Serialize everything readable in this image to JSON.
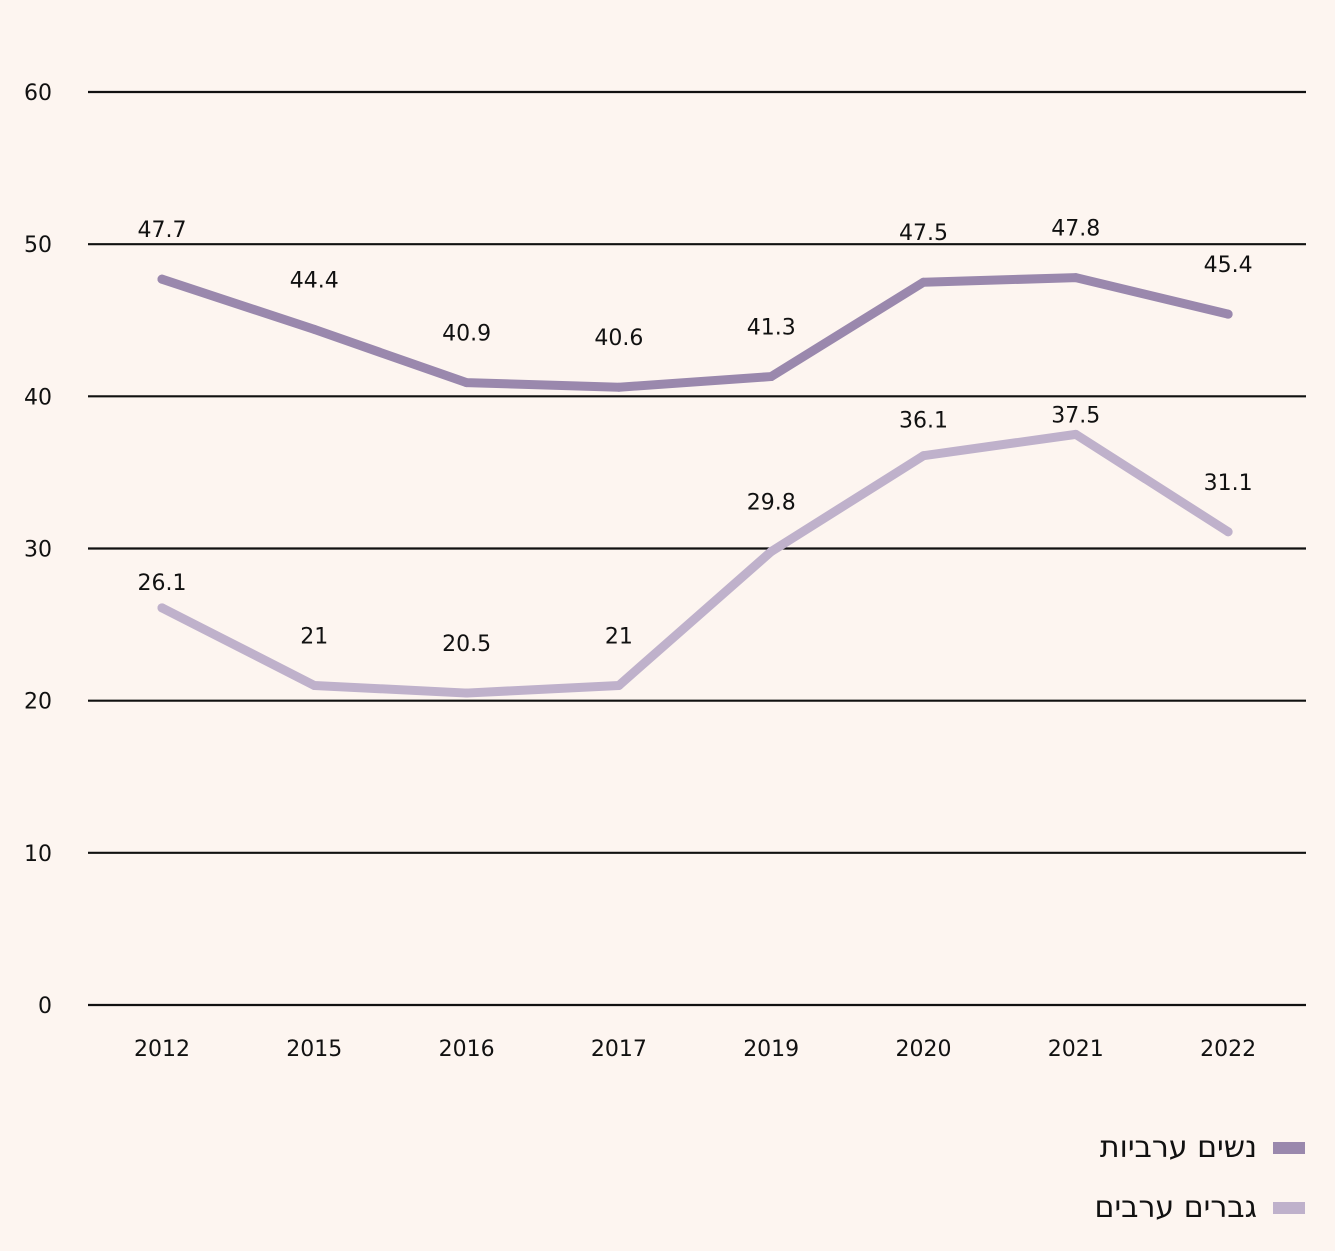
{
  "chart_data": {
    "type": "line",
    "title": "",
    "xlabel": "",
    "ylabel": "",
    "categories": [
      "2012",
      "2015",
      "2016",
      "2017",
      "2019",
      "2020",
      "2021",
      "2022"
    ],
    "ylim": [
      0,
      60
    ],
    "yticks": [
      0,
      10,
      20,
      30,
      40,
      50,
      60
    ],
    "grid": true,
    "legend_position": "bottom-right",
    "series": [
      {
        "name": "נשים ערביות",
        "color": "#9a88ad",
        "values": [
          47.7,
          44.4,
          40.9,
          40.6,
          41.3,
          47.5,
          47.8,
          45.4
        ],
        "labels": [
          "47.7",
          "44.4",
          "40.9",
          "40.6",
          "41.3",
          "47.5",
          "47.8",
          "45.4"
        ]
      },
      {
        "name": "גברים ערבים",
        "color": "#bfb1cb",
        "values": [
          26.1,
          21,
          20.5,
          21,
          29.8,
          36.1,
          37.5,
          31.1
        ],
        "labels": [
          "26.1",
          "21",
          "20.5",
          "21",
          "29.8",
          "36.1",
          "37.5",
          "31.1"
        ]
      }
    ]
  }
}
